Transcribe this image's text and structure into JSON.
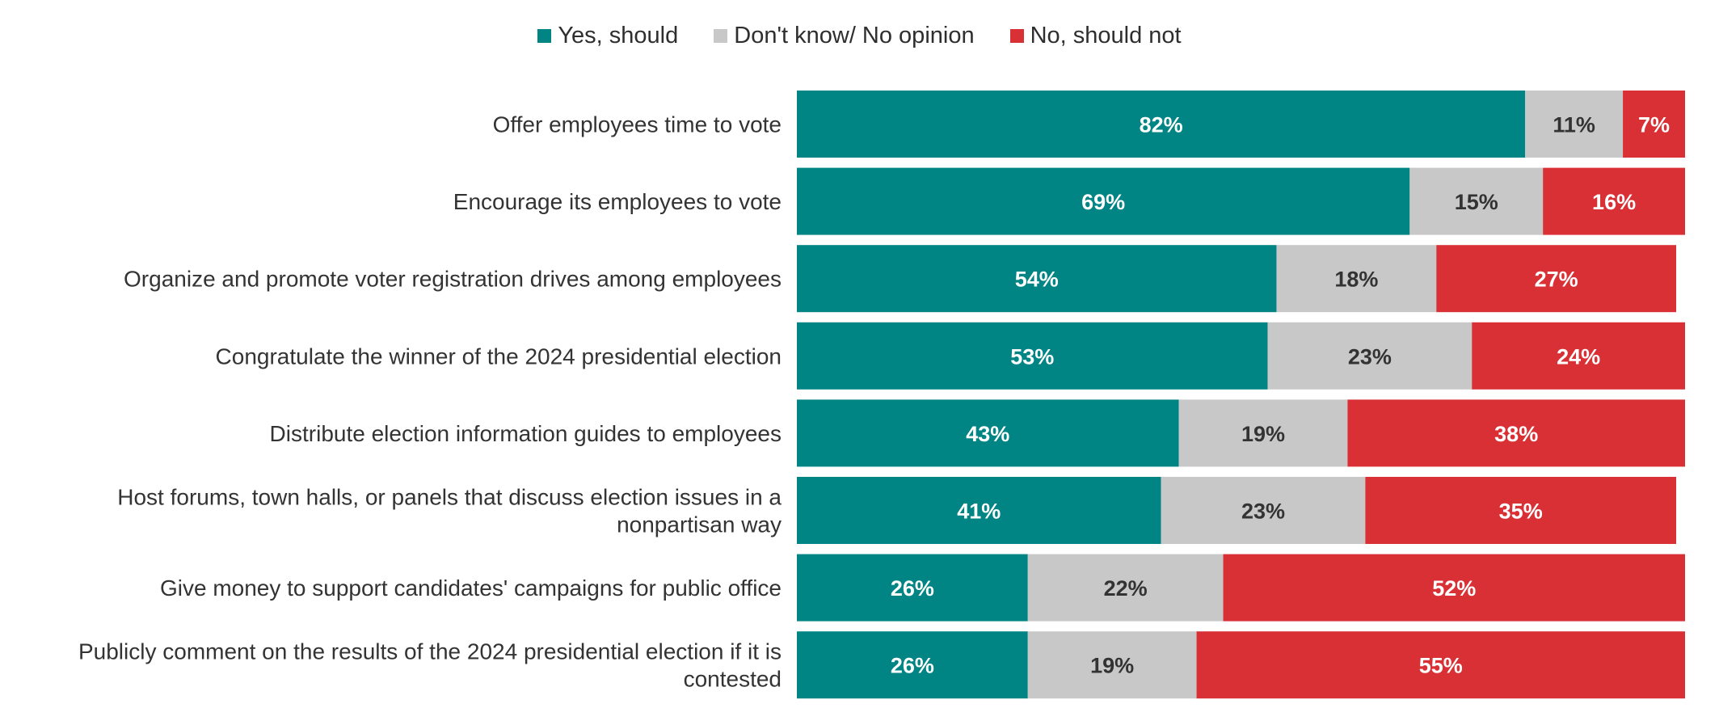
{
  "chart_data": {
    "type": "bar",
    "orientation": "horizontal",
    "stacked": true,
    "legend_position": "top-center",
    "grid": false,
    "xlim": [
      0,
      100
    ],
    "categories": [
      "Offer employees time to vote",
      "Encourage its employees to vote",
      "Organize and promote voter registration drives among employees",
      "Congratulate the winner of the 2024 presidential election",
      "Distribute election information guides to employees",
      "Host forums, town halls, or panels that discuss election issues in a nonpartisan way",
      "Give money to support candidates' campaigns for public office",
      "Publicly comment on the results of the 2024 presidential election if it is contested"
    ],
    "category_lines": [
      [
        "Offer employees time to vote"
      ],
      [
        "Encourage its employees to vote"
      ],
      [
        "Organize and promote voter registration drives among employees"
      ],
      [
        "Congratulate the winner of the 2024 presidential election"
      ],
      [
        "Distribute election information guides to employees"
      ],
      [
        "Host forums, town halls, or panels that discuss election issues in a",
        "nonpartisan way"
      ],
      [
        "Give money to support candidates' campaigns for public office"
      ],
      [
        "Publicly comment on the results of the 2024 presidential election if it is",
        "contested"
      ]
    ],
    "series": [
      {
        "name": "Yes, should",
        "color": "#008484",
        "label_color": "#ffffff",
        "values": [
          82,
          69,
          54,
          53,
          43,
          41,
          26,
          26
        ]
      },
      {
        "name": "Don't know/ No opinion",
        "color": "#c8c8c8",
        "label_color": "#333333",
        "values": [
          11,
          15,
          18,
          23,
          19,
          23,
          22,
          19
        ]
      },
      {
        "name": "No, should not",
        "color": "#d93035",
        "label_color": "#ffffff",
        "values": [
          7,
          16,
          27,
          24,
          38,
          35,
          52,
          55
        ]
      }
    ],
    "value_suffix": "%"
  }
}
